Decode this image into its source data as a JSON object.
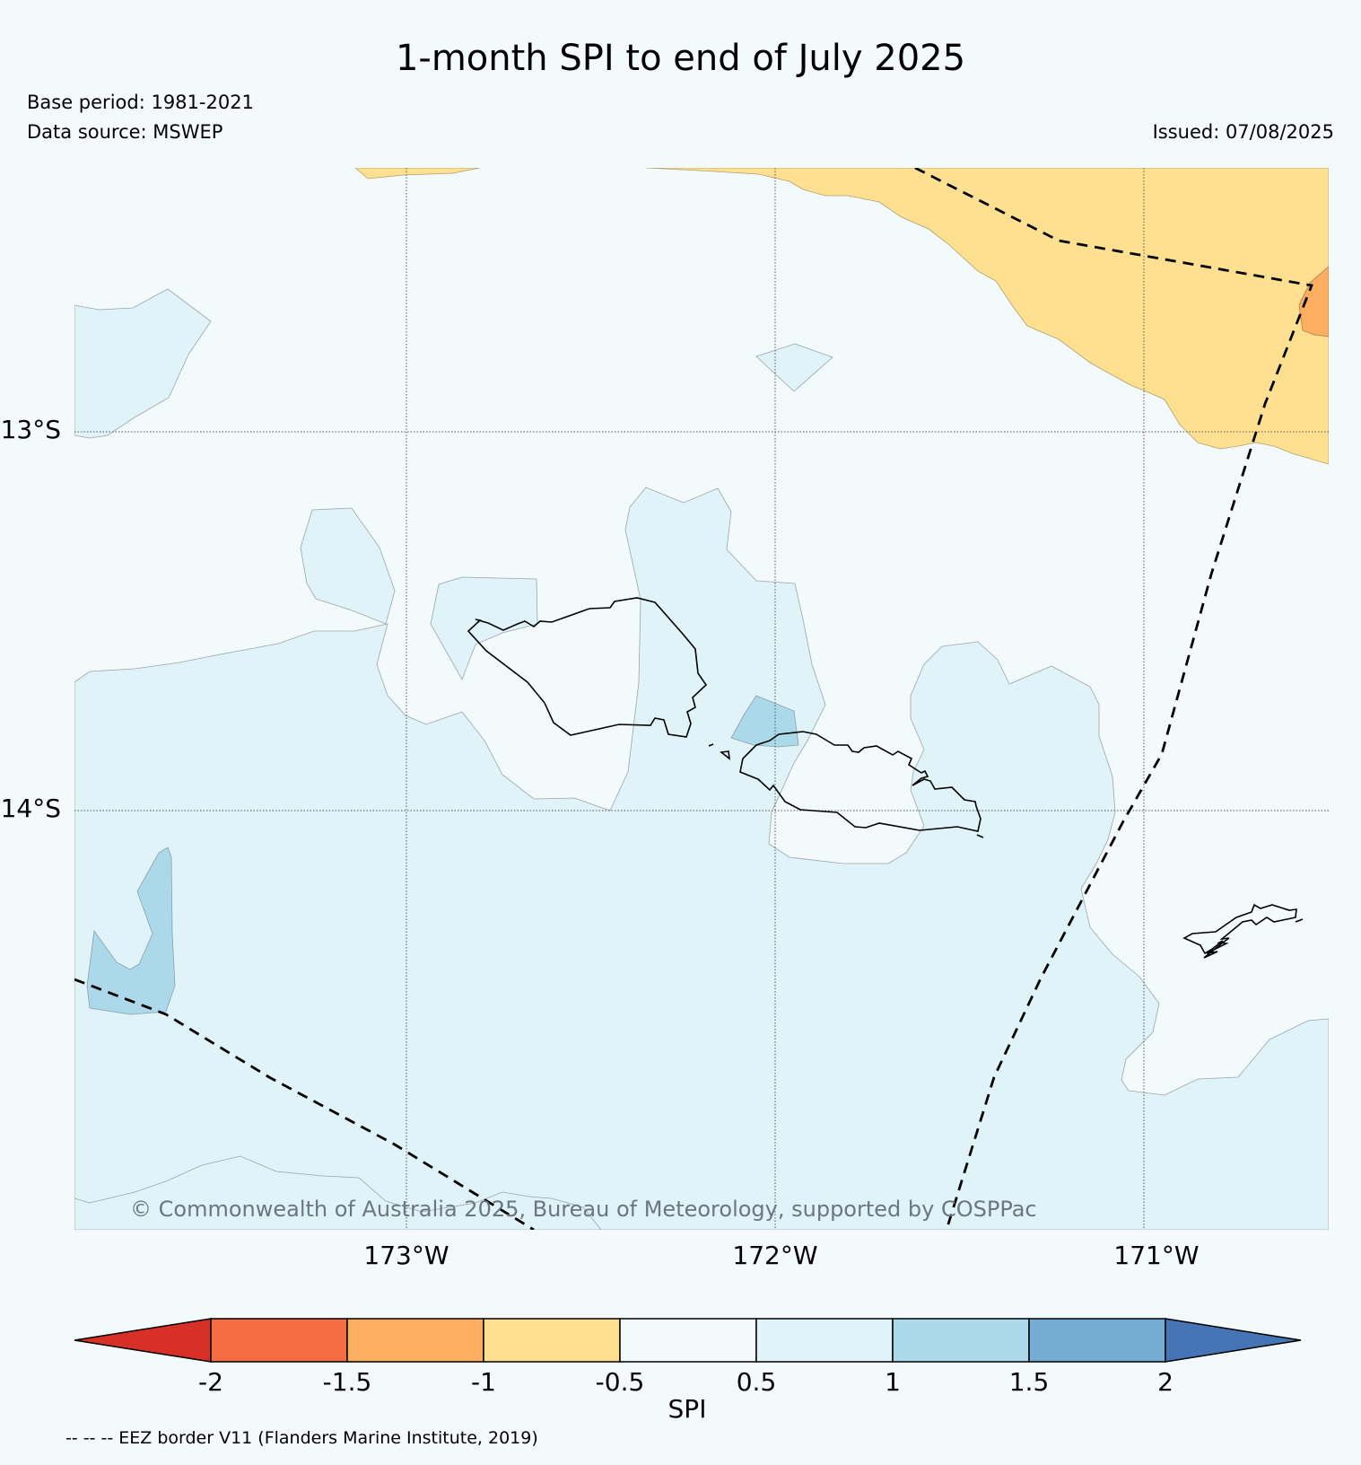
{
  "header": {
    "title": "1-month SPI to end of July 2025",
    "base_period": "Base period: 1981-2021",
    "data_source": "Data source: MSWEP",
    "issued": "Issued: 07/08/2025"
  },
  "map": {
    "lat_labels": [
      "13°S",
      "14°S"
    ],
    "lon_labels": [
      "173°W",
      "172°W",
      "171°W"
    ],
    "copyright": "© Commonwealth of Australia 2025, Bureau of Meteorology, supported by COSPPac"
  },
  "colorbar": {
    "label": "SPI",
    "ticks": [
      "-2",
      "-1.5",
      "-1",
      "-0.5",
      "0.5",
      "1",
      "1.5",
      "2"
    ],
    "colors": {
      "lt_-2": "#d73027",
      "-2_-1.5": "#f46d43",
      "-1.5_-1": "#fdae61",
      "-1_-0.5": "#fee090",
      "-0.5_0.5": "#f3fafc",
      "0.5_1": "#e0f3f8",
      "1_1.5": "#abd9e9",
      "1.5_2": "#74add1",
      "gt_2": "#4575b4"
    }
  },
  "footnote": "-- -- -- EEZ border V11 (Flanders Marine Institute, 2019)"
}
